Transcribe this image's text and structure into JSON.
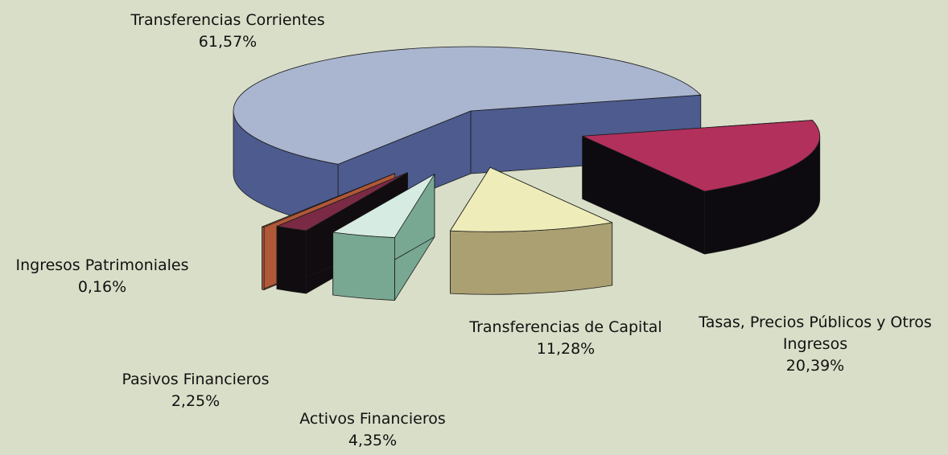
{
  "chart_data": {
    "type": "pie3d",
    "categories": [
      "Transferencias Corrientes",
      "Tasas, Precios Públicos y Otros Ingresos",
      "Transferencias de Capital",
      "Activos Financieros",
      "Pasivos Financieros",
      "Ingresos Patrimoniales"
    ],
    "values": [
      61.57,
      20.39,
      11.28,
      4.35,
      2.25,
      0.16
    ],
    "value_labels": [
      "61,57%",
      "20,39%",
      "11,28%",
      "4,35%",
      "2,25%",
      "0,16%"
    ],
    "colors": [
      "#aab5cf",
      "#b2305c",
      "#eeecb8",
      "#d6ece2",
      "#7a2a44",
      "#c8603c"
    ],
    "side_colors": [
      "#4d5b8e",
      "#0d0a10",
      "#aaa072",
      "#78a892",
      "#100c10",
      "#b05838"
    ]
  }
}
